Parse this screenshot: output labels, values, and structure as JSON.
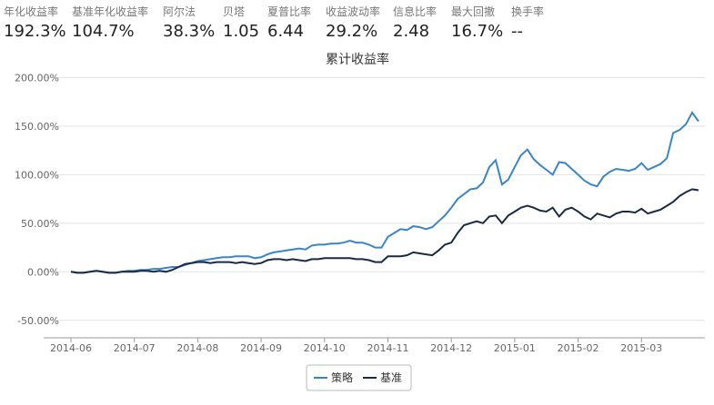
{
  "stats": [
    {
      "label": "年化收益率",
      "value": "192.3%"
    },
    {
      "label": "基准年化收益率",
      "value": "104.7%"
    },
    {
      "label": "阿尔法",
      "value": "38.3%"
    },
    {
      "label": "贝塔",
      "value": "1.05"
    },
    {
      "label": "夏普比率",
      "value": "6.44"
    },
    {
      "label": "收益波动率",
      "value": "29.2%"
    },
    {
      "label": "信息比率",
      "value": "2.48"
    },
    {
      "label": "最大回撤",
      "value": "16.7%"
    },
    {
      "label": "换手率",
      "value": "--"
    }
  ],
  "chart_data": {
    "type": "line",
    "title": "累计收益率",
    "categories": [
      "2014-06",
      null,
      null,
      null,
      null,
      null,
      null,
      null,
      null,
      null,
      "2014-07",
      null,
      null,
      null,
      null,
      null,
      null,
      null,
      null,
      null,
      "2014-08",
      null,
      null,
      null,
      null,
      null,
      null,
      null,
      null,
      null,
      "2014-09",
      null,
      null,
      null,
      null,
      null,
      null,
      null,
      null,
      null,
      "2014-10",
      null,
      null,
      null,
      null,
      null,
      null,
      null,
      null,
      null,
      "2014-11",
      null,
      null,
      null,
      null,
      null,
      null,
      null,
      null,
      null,
      "2014-12",
      null,
      null,
      null,
      null,
      null,
      null,
      null,
      null,
      null,
      "2015-01",
      null,
      null,
      null,
      null,
      null,
      null,
      null,
      null,
      null,
      "2015-02",
      null,
      null,
      null,
      null,
      null,
      null,
      null,
      null,
      null,
      "2015-03",
      null,
      null,
      null,
      null,
      null,
      null,
      null,
      null,
      null
    ],
    "series": [
      {
        "name": "策略",
        "color": "#3a85c8",
        "values": [
          0,
          -1,
          -1,
          0,
          1,
          0,
          -1,
          -1,
          0,
          1,
          1,
          2,
          2,
          3,
          3,
          4,
          5,
          5,
          7,
          9,
          11,
          12,
          13,
          14,
          15,
          15,
          16,
          16,
          16,
          14,
          15,
          18,
          20,
          21,
          22,
          23,
          24,
          23,
          27,
          28,
          28,
          29,
          29,
          30,
          32,
          30,
          30,
          28,
          25,
          25,
          36,
          40,
          44,
          43,
          47,
          46,
          44,
          46,
          52,
          58,
          66,
          75,
          80,
          85,
          86,
          92,
          108,
          115,
          90,
          95,
          108,
          120,
          126,
          116,
          110,
          105,
          100,
          113,
          112,
          106,
          100,
          94,
          90,
          88,
          98,
          103,
          106,
          105,
          104,
          106,
          112,
          105,
          108,
          111,
          117,
          143,
          146,
          152,
          164,
          155
        ]
      },
      {
        "name": "基准",
        "color": "#1b2a45",
        "values": [
          0,
          -1,
          -1,
          0,
          1,
          0,
          -1,
          -1,
          0,
          0,
          0,
          1,
          1,
          0,
          1,
          0,
          2,
          5,
          8,
          9,
          10,
          10,
          9,
          10,
          10,
          10,
          9,
          10,
          9,
          8,
          9,
          12,
          13,
          13,
          12,
          13,
          12,
          11,
          13,
          13,
          14,
          14,
          14,
          14,
          14,
          13,
          13,
          12,
          10,
          10,
          16,
          16,
          16,
          17,
          20,
          19,
          18,
          17,
          22,
          28,
          30,
          40,
          48,
          50,
          52,
          50,
          57,
          58,
          50,
          58,
          62,
          66,
          68,
          66,
          63,
          62,
          66,
          57,
          64,
          66,
          62,
          57,
          54,
          60,
          58,
          56,
          60,
          62,
          62,
          61,
          65,
          60,
          62,
          64,
          68,
          72,
          78,
          82,
          85,
          84
        ]
      }
    ],
    "ylim": [
      -68,
      207
    ],
    "yticks": [
      {
        "value": -50,
        "label": "-50.00%"
      },
      {
        "value": 0,
        "label": "0.00%"
      },
      {
        "value": 50,
        "label": "50.00%"
      },
      {
        "value": 100,
        "label": "100.00%"
      },
      {
        "value": 150,
        "label": "150.00%"
      },
      {
        "value": 200,
        "label": "200.00%"
      }
    ],
    "grid": true
  }
}
